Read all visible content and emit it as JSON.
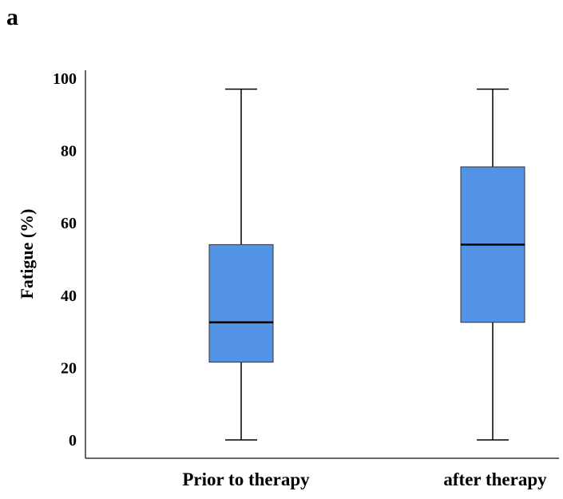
{
  "panel_label": "a",
  "chart_data": {
    "type": "boxplot",
    "ylabel": "Fatigue (%)",
    "xlabel": "",
    "ylim": [
      0,
      100
    ],
    "yticks": [
      0,
      20,
      40,
      60,
      80,
      100
    ],
    "categories": [
      "Prior to therapy",
      "after therapy"
    ],
    "boxes": [
      {
        "category": "Prior to therapy",
        "min": 0,
        "q1": 21.5,
        "median": 32.5,
        "q3": 54,
        "max": 97
      },
      {
        "category": "after therapy",
        "min": 0,
        "q1": 32.5,
        "median": 54,
        "q3": 75.5,
        "max": 97
      }
    ],
    "box_color": "#5293E5",
    "grid": false
  }
}
